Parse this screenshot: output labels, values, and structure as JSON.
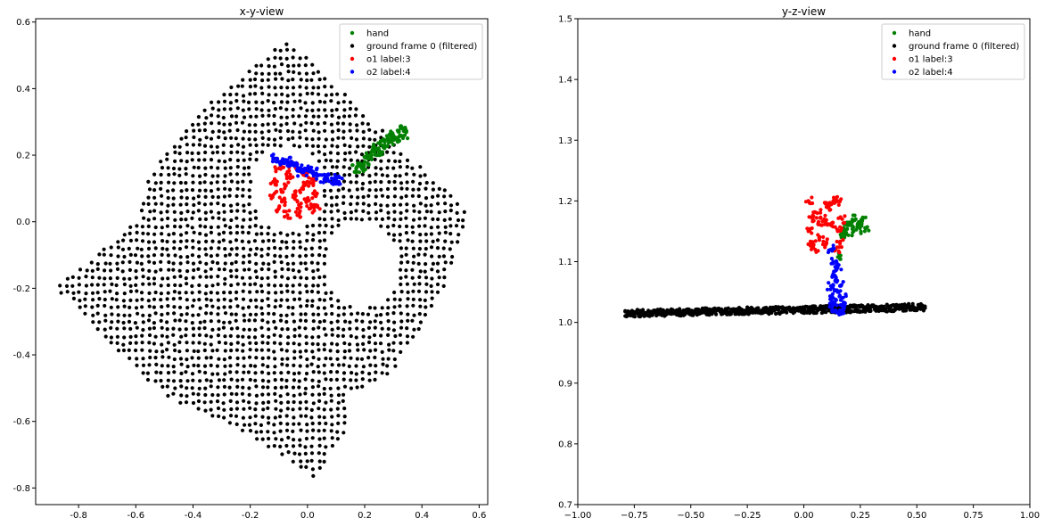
{
  "chart_data": [
    {
      "type": "scatter",
      "title": "x-y-view",
      "xlabel": "",
      "ylabel": "",
      "xlim": [
        -0.95,
        0.63
      ],
      "ylim": [
        -0.85,
        0.61
      ],
      "xticks": [
        "-0.8",
        "-0.6",
        "-0.4",
        "-0.2",
        "0.0",
        "0.2",
        "0.4",
        "0.6"
      ],
      "yticks": [
        "0.6",
        "0.4",
        "0.2",
        "0.0",
        "-0.2",
        "-0.4",
        "-0.6",
        "-0.8"
      ],
      "xtick_values": [
        -0.8,
        -0.6,
        -0.4,
        -0.2,
        0.0,
        0.2,
        0.4,
        0.6
      ],
      "ytick_values": [
        0.6,
        0.4,
        0.2,
        0.0,
        -0.2,
        -0.4,
        -0.6,
        -0.8
      ],
      "legend_position": "top-right",
      "grid": false,
      "series": [
        {
          "name": "hand",
          "color": "#008000",
          "points": [
            [
              0.18,
              0.17
            ],
            [
              0.2,
              0.18
            ],
            [
              0.22,
              0.2
            ],
            [
              0.24,
              0.22
            ],
            [
              0.26,
              0.23
            ],
            [
              0.28,
              0.25
            ],
            [
              0.3,
              0.26
            ],
            [
              0.32,
              0.27
            ],
            [
              0.34,
              0.26
            ],
            [
              0.19,
              0.16
            ],
            [
              0.21,
              0.19
            ],
            [
              0.25,
              0.21
            ],
            [
              0.29,
              0.24
            ],
            [
              0.33,
              0.28
            ],
            [
              0.17,
              0.16
            ],
            [
              0.23,
              0.21
            ],
            [
              0.27,
              0.24
            ],
            [
              0.31,
              0.25
            ]
          ]
        },
        {
          "name": "ground frame 0 (filtered)",
          "color": "#000000",
          "polygon": [
            [
              -0.06,
              0.54
            ],
            [
              0.56,
              0.03
            ],
            [
              0.48,
              -0.2
            ],
            [
              0.3,
              -0.45
            ],
            [
              0.15,
              -0.52
            ],
            [
              0.14,
              -0.62
            ],
            [
              0.02,
              -0.78
            ],
            [
              -0.1,
              -0.7
            ],
            [
              -0.3,
              -0.6
            ],
            [
              -0.45,
              -0.55
            ],
            [
              -0.6,
              -0.45
            ],
            [
              -0.88,
              -0.2
            ],
            [
              -0.6,
              0.0
            ],
            [
              -0.55,
              0.15
            ],
            [
              -0.35,
              0.35
            ],
            [
              -0.1,
              0.53
            ]
          ],
          "holes": [
            {
              "center": [
                -0.07,
                0.1
              ],
              "radius": 0.13
            },
            {
              "center": [
                0.19,
                -0.13
              ],
              "radius": 0.13
            }
          ],
          "grid_spacing": 0.022
        },
        {
          "name": "o1 label:3",
          "color": "#ff0000",
          "points": [
            [
              -0.1,
              0.16
            ],
            [
              -0.12,
              0.12
            ],
            [
              -0.12,
              0.08
            ],
            [
              -0.1,
              0.04
            ],
            [
              -0.07,
              0.02
            ],
            [
              -0.03,
              0.02
            ],
            [
              0.01,
              0.04
            ],
            [
              0.03,
              0.08
            ],
            [
              0.02,
              0.12
            ],
            [
              -0.01,
              0.15
            ],
            [
              -0.05,
              0.17
            ],
            [
              -0.08,
              0.1
            ],
            [
              -0.05,
              0.08
            ],
            [
              -0.02,
              0.1
            ],
            [
              -0.06,
              0.13
            ],
            [
              -0.09,
              0.06
            ],
            [
              -0.03,
              0.05
            ],
            [
              0.0,
              0.07
            ],
            [
              -0.07,
              0.15
            ],
            [
              0.0,
              0.12
            ],
            [
              0.03,
              0.05
            ]
          ]
        },
        {
          "name": "o2 label:4",
          "color": "#0000ff",
          "points": [
            [
              -0.11,
              0.19
            ],
            [
              -0.09,
              0.18
            ],
            [
              -0.07,
              0.18
            ],
            [
              -0.05,
              0.17
            ],
            [
              -0.03,
              0.16
            ],
            [
              -0.01,
              0.16
            ],
            [
              0.01,
              0.15
            ],
            [
              0.03,
              0.14
            ],
            [
              0.05,
              0.14
            ],
            [
              0.07,
              0.13
            ],
            [
              0.09,
              0.12
            ],
            [
              0.11,
              0.12
            ],
            [
              -0.1,
              0.18
            ],
            [
              -0.06,
              0.17
            ],
            [
              -0.02,
              0.15
            ],
            [
              0.02,
              0.15
            ],
            [
              0.06,
              0.13
            ],
            [
              0.1,
              0.13
            ]
          ]
        }
      ]
    },
    {
      "type": "scatter",
      "title": "y-z-view",
      "xlabel": "",
      "ylabel": "",
      "xlim": [
        -1.0,
        1.0
      ],
      "ylim": [
        0.7,
        1.5
      ],
      "xticks": [
        "−1.00",
        "−0.75",
        "−0.50",
        "−0.25",
        "0.00",
        "0.25",
        "0.50",
        "0.75",
        "1.00"
      ],
      "yticks": [
        "1.5",
        "1.4",
        "1.3",
        "1.2",
        "1.1",
        "1.0",
        "0.9",
        "0.8",
        "0.7"
      ],
      "xtick_values": [
        -1.0,
        -0.75,
        -0.5,
        -0.25,
        0.0,
        0.25,
        0.5,
        0.75,
        1.0
      ],
      "ytick_values": [
        1.5,
        1.4,
        1.3,
        1.2,
        1.1,
        1.0,
        0.9,
        0.8,
        0.7
      ],
      "legend_position": "top-right",
      "grid": false,
      "series": [
        {
          "name": "hand",
          "color": "#008000",
          "points": [
            [
              0.17,
              1.15
            ],
            [
              0.19,
              1.16
            ],
            [
              0.21,
              1.16
            ],
            [
              0.23,
              1.17
            ],
            [
              0.25,
              1.16
            ],
            [
              0.27,
              1.15
            ],
            [
              0.26,
              1.17
            ],
            [
              0.22,
              1.15
            ],
            [
              0.18,
              1.14
            ],
            [
              0.16,
              1.11
            ]
          ]
        },
        {
          "name": "ground frame 0 (filtered)",
          "color": "#000000",
          "band": {
            "x_start": -0.79,
            "x_end": 0.54,
            "z_start": 1.015,
            "z_end": 1.025,
            "thickness": 0.012
          }
        },
        {
          "name": "o1 label:3",
          "color": "#ff0000",
          "points": [
            [
              0.02,
              1.2
            ],
            [
              0.02,
              1.15
            ],
            [
              0.03,
              1.13
            ],
            [
              0.05,
              1.12
            ],
            [
              0.07,
              1.14
            ],
            [
              0.09,
              1.17
            ],
            [
              0.11,
              1.19
            ],
            [
              0.13,
              1.2
            ],
            [
              0.15,
              1.2
            ],
            [
              0.17,
              1.17
            ],
            [
              0.16,
              1.13
            ],
            [
              0.14,
              1.12
            ],
            [
              0.1,
              1.13
            ],
            [
              0.08,
              1.16
            ],
            [
              0.12,
              1.16
            ],
            [
              0.06,
              1.18
            ],
            [
              0.04,
              1.17
            ],
            [
              0.15,
              1.15
            ],
            [
              0.1,
              1.19
            ]
          ]
        },
        {
          "name": "o2 label:4",
          "color": "#0000ff",
          "points": [
            [
              0.12,
              1.12
            ],
            [
              0.13,
              1.1
            ],
            [
              0.13,
              1.08
            ],
            [
              0.12,
              1.06
            ],
            [
              0.13,
              1.04
            ],
            [
              0.14,
              1.02
            ],
            [
              0.16,
              1.02
            ],
            [
              0.17,
              1.04
            ],
            [
              0.18,
              1.03
            ],
            [
              0.15,
              1.05
            ],
            [
              0.14,
              1.07
            ],
            [
              0.16,
              1.06
            ],
            [
              0.13,
              1.03
            ],
            [
              0.17,
              1.02
            ],
            [
              0.15,
              1.09
            ]
          ]
        }
      ]
    }
  ]
}
